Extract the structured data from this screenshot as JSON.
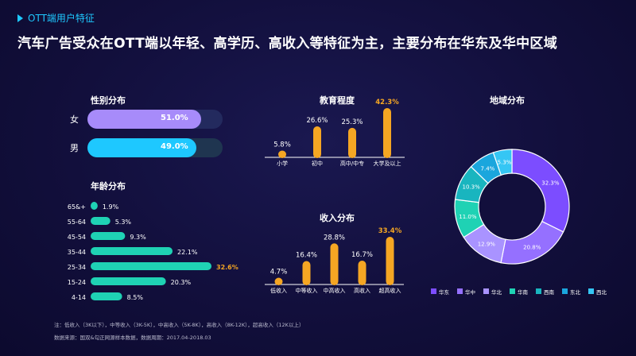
{
  "header": {
    "section_label": "OTT端用户特征",
    "title": "汽车广告受众在OTT端以年轻、高学历、高收入等特征为主，主要分布在华东及华中区域"
  },
  "colors": {
    "female": "#a78bfa",
    "male": "#1ec8ff",
    "track_female": "#232a5e",
    "track_male": "#1f3550",
    "teal": "#1fd2b4",
    "gold": "#f5a623",
    "highlight": "#f5a623"
  },
  "footnotes": {
    "note": "注：低收入（3K以下），中等收入（3K-5K），中高收入（5K-8K），高收入（8K-12K），超高收入（12K以上）",
    "source": "数据来源：国双&勾正网源样本数据，数据周期：2017.04-2018.03"
  },
  "chart_data": [
    {
      "type": "bar",
      "orientation": "horizontal",
      "title": "性别分布",
      "categories": [
        "女",
        "男"
      ],
      "values": [
        51.0,
        49.0
      ],
      "value_labels": [
        "51.0%",
        "49.0%"
      ],
      "unit": "%"
    },
    {
      "type": "bar",
      "orientation": "horizontal",
      "title": "年龄分布",
      "categories": [
        "65&+",
        "55-64",
        "45-54",
        "35-44",
        "25-34",
        "15-24",
        "4-14"
      ],
      "values": [
        1.9,
        5.3,
        9.3,
        22.1,
        32.6,
        20.3,
        8.5
      ],
      "value_labels": [
        "1.9%",
        "5.3%",
        "9.3%",
        "22.1%",
        "32.6%",
        "20.3%",
        "8.5%"
      ],
      "highlight_index": 4,
      "unit": "%"
    },
    {
      "type": "bar",
      "orientation": "vertical",
      "title": "教育程度",
      "categories": [
        "小学",
        "初中",
        "高中/中专",
        "大学及以上"
      ],
      "values": [
        5.8,
        26.6,
        25.3,
        42.3
      ],
      "value_labels": [
        "5.8%",
        "26.6%",
        "25.3%",
        "42.3%"
      ],
      "highlight_index": 3,
      "unit": "%"
    },
    {
      "type": "bar",
      "orientation": "vertical",
      "title": "收入分布",
      "categories": [
        "低收入",
        "中等收入",
        "中高收入",
        "高收入",
        "超高收入"
      ],
      "values": [
        4.7,
        16.4,
        28.8,
        16.7,
        33.4
      ],
      "value_labels": [
        "4.7%",
        "16.4%",
        "28.8%",
        "16.7%",
        "33.4%"
      ],
      "highlight_index": 4,
      "unit": "%"
    },
    {
      "type": "pie",
      "donut": true,
      "title": "地域分布",
      "categories": [
        "华东",
        "华中",
        "华北",
        "华南",
        "西南",
        "东北",
        "西北"
      ],
      "values": [
        32.3,
        20.8,
        12.9,
        11.0,
        10.3,
        7.4,
        5.3
      ],
      "value_labels": [
        "32.3%",
        "20.8%",
        "12.9%",
        "11.0%",
        "10.3%",
        "7.4%",
        "5.3%"
      ],
      "colors": [
        "#7c4dff",
        "#9570ff",
        "#a993ff",
        "#1fd2b4",
        "#19b5bf",
        "#1aa6dd",
        "#35c6f4"
      ],
      "legend_position": "bottom"
    }
  ]
}
